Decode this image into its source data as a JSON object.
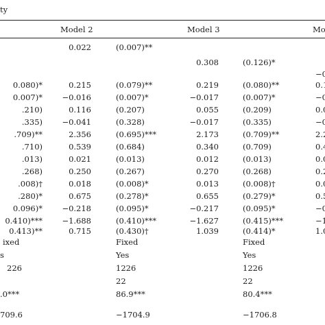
{
  "caption_fragment": "ty",
  "headers": {
    "model2": "Model 2",
    "model3": "Model 3",
    "model4": "Mo"
  },
  "rows": [
    {
      "c0": "",
      "c1": "0.022",
      "c2": "(0.007)**",
      "c3": "",
      "c4": "",
      "c5": ""
    },
    {
      "c0": "",
      "c1": "",
      "c2": "",
      "c3": "0.308",
      "c4": "(0.126)*",
      "c5": ""
    },
    {
      "c0": "",
      "c1": "",
      "c2": "",
      "c3": "",
      "c4": "",
      "c5": "−0"
    },
    {
      "c0": "0.080)*",
      "c1": "0.215",
      "c2": "(0.079)**",
      "c3": "0.219",
      "c4": "(0.080)**",
      "c5": "0.1"
    },
    {
      "c0": "0.007)*",
      "c1": "−0.016",
      "c2": "(0.007)*",
      "c3": "−0.017",
      "c4": "(0.007)*",
      "c5": "−0"
    },
    {
      "c0": ".210)",
      "c1": "0.116",
      "c2": "(0.207)",
      "c3": "0.055",
      "c4": "(0.209)",
      "c5": "0.0"
    },
    {
      "c0": ".335)",
      "c1": "−0.041",
      "c2": "(0.328)",
      "c3": "−0.017",
      "c4": "(0.335)",
      "c5": "−0"
    },
    {
      "c0": ".709)**",
      "c1": "2.356",
      "c2": "(0.695)***",
      "c3": "2.173",
      "c4": "(0.709)**",
      "c5": "2.2"
    },
    {
      "c0": ".710)",
      "c1": "0.539",
      "c2": "(0.684)",
      "c3": "0.340",
      "c4": "(0.709)",
      "c5": "0.4"
    },
    {
      "c0": ".013)",
      "c1": "0.021",
      "c2": "(0.013)",
      "c3": "0.012",
      "c4": "(0.013)",
      "c5": "0.0"
    },
    {
      "c0": ".268)",
      "c1": "0.250",
      "c2": "(0.267)",
      "c3": "0.270",
      "c4": "(0.268)",
      "c5": "0.2"
    },
    {
      "c0": ".008)†",
      "c1": "0.018",
      "c2": "(0.008)*",
      "c3": "0.013",
      "c4": "(0.008)†",
      "c5": "0.0"
    },
    {
      "c0": ".280)*",
      "c1": "0.675",
      "c2": "(0.278)*",
      "c3": "0.655",
      "c4": "(0.279)*",
      "c5": "0.5"
    },
    {
      "c0": "0.096)*",
      "c1": "−0.218",
      "c2": "(0.095)*",
      "c3": "−0.217",
      "c4": "(0.095)*",
      "c5": "−0"
    },
    {
      "c0": "0.410)***",
      "c1": "−1.688",
      "c2": "(0.410)***",
      "c3": "−1.627",
      "c4": "(0.415)***",
      "c5": "−1"
    },
    {
      "c0": "0.413)**",
      "c1": "0.715",
      "c2": "(0.430)†",
      "c3": "1.039",
      "c4": "(0.414)*",
      "c5": "1.0"
    }
  ],
  "footer": {
    "fixed_left": "ixed",
    "fixed_m2": "Fixed",
    "fixed_m3": "Fixed",
    "yes_left": "s",
    "yes_m2": "Yes",
    "yes_m3": "Yes",
    "n_left": "226",
    "n_m2": "1226",
    "n_m3": "1226",
    "groups_m2": "22",
    "groups_m3": "22",
    "chi_left": ".0***",
    "chi_m2": "86.9***",
    "chi_m3": "80.4***",
    "ll_left": "709.6",
    "ll_m2": "−1704.9",
    "ll_m3": "−1706.8"
  }
}
